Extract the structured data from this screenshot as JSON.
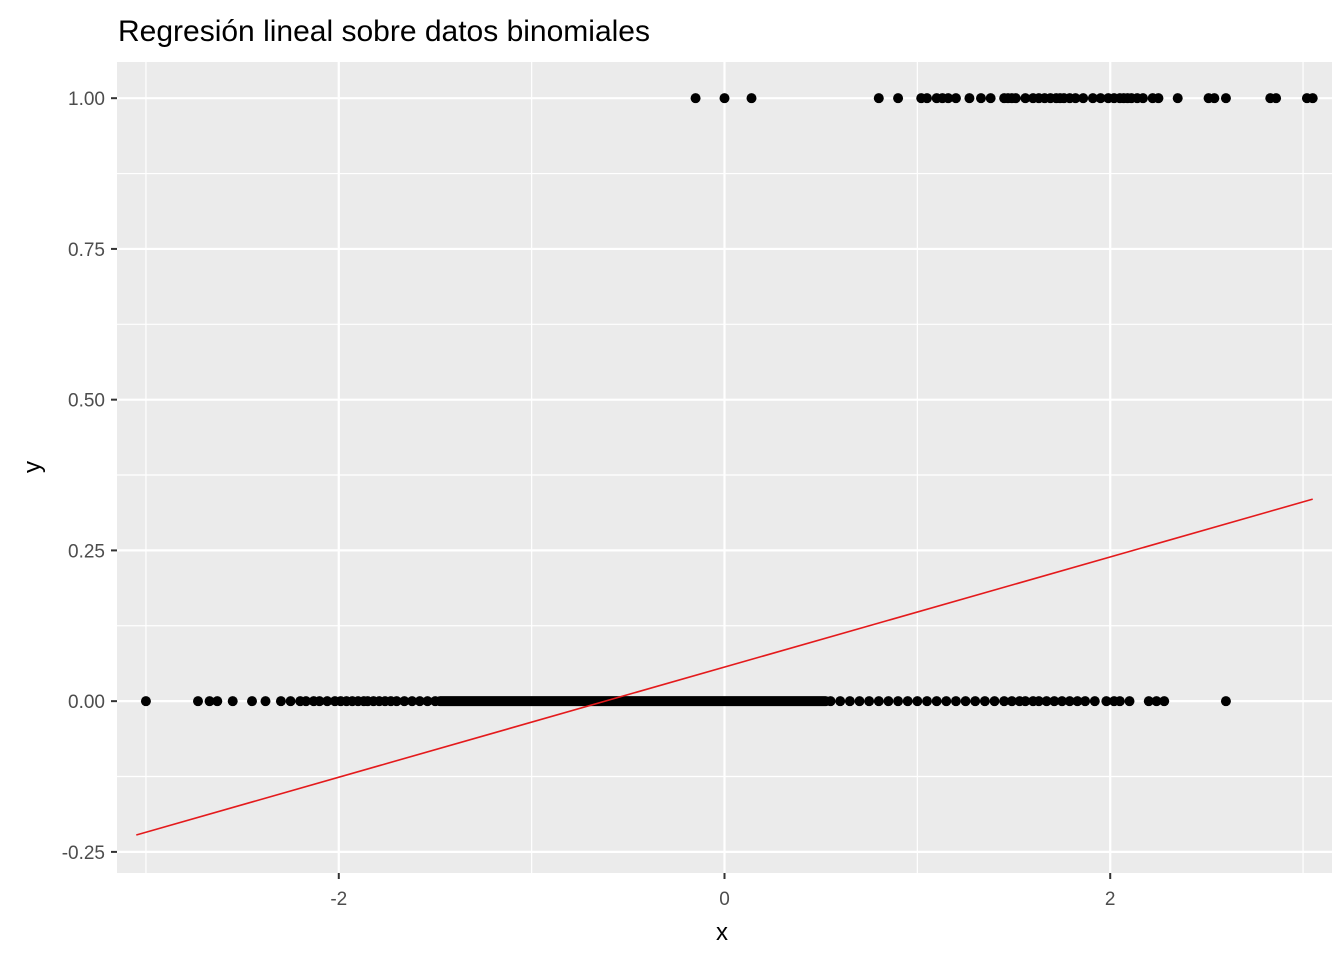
{
  "chart_data": {
    "type": "scatter",
    "title": "Regresión lineal sobre datos binomiales",
    "xlabel": "x",
    "ylabel": "y",
    "xlim": [
      -3.15,
      3.15
    ],
    "ylim": [
      -0.285,
      1.06
    ],
    "x_ticks": [
      -2,
      0,
      2
    ],
    "x_tick_labels": [
      "-2",
      "0",
      "2"
    ],
    "y_ticks": [
      -0.25,
      0,
      0.25,
      0.5,
      0.75,
      1
    ],
    "y_tick_labels": [
      "-0.25",
      "0.00",
      "0.25",
      "0.50",
      "0.75",
      "1.00"
    ],
    "grid": true,
    "background": "#ebebeb",
    "grid_color": "#ffffff",
    "point_color": "#000000",
    "series": [
      {
        "kind": "points",
        "y": 1,
        "x": [
          -0.15,
          0.0,
          0.14,
          0.8,
          0.9,
          1.02,
          1.05,
          1.1,
          1.13,
          1.16,
          1.2,
          1.27,
          1.33,
          1.38,
          1.45,
          1.47,
          1.49,
          1.51,
          1.56,
          1.6,
          1.63,
          1.66,
          1.69,
          1.72,
          1.74,
          1.76,
          1.79,
          1.82,
          1.86,
          1.91,
          1.95,
          1.99,
          2.02,
          2.05,
          2.07,
          2.09,
          2.11,
          2.14,
          2.17,
          2.22,
          2.25,
          2.35,
          2.51,
          2.54,
          2.6,
          2.83,
          2.86,
          3.02,
          3.05
        ]
      },
      {
        "kind": "points",
        "y": 0,
        "x": [
          -3.0,
          -2.73,
          -2.67,
          -2.63,
          -2.55,
          -2.45,
          -2.38,
          -2.3,
          -2.25,
          -2.2,
          -2.17,
          -2.13,
          -2.1,
          -2.06,
          -2.02,
          -1.99,
          -1.96,
          -1.93,
          -1.9,
          -1.87,
          -1.85,
          -1.82,
          -1.79,
          -1.76,
          -1.73,
          -1.7,
          -1.66,
          -1.62,
          -1.58,
          -1.54,
          -1.5,
          0.55,
          0.6,
          0.65,
          0.7,
          0.75,
          0.8,
          0.85,
          0.9,
          0.95,
          1.0,
          1.05,
          1.1,
          1.15,
          1.2,
          1.25,
          1.3,
          1.35,
          1.4,
          1.45,
          1.49,
          1.53,
          1.56,
          1.6,
          1.63,
          1.67,
          1.71,
          1.75,
          1.79,
          1.83,
          1.87,
          1.92,
          1.98,
          2.02,
          2.05,
          2.1,
          2.2,
          2.24,
          2.28,
          2.6
        ],
        "dense_band": {
          "from": -1.5,
          "to": 0.55
        }
      },
      {
        "kind": "line",
        "color": "#e41a1c",
        "x": [
          -3.05,
          3.05
        ],
        "y": [
          -0.222,
          0.335
        ]
      }
    ]
  }
}
